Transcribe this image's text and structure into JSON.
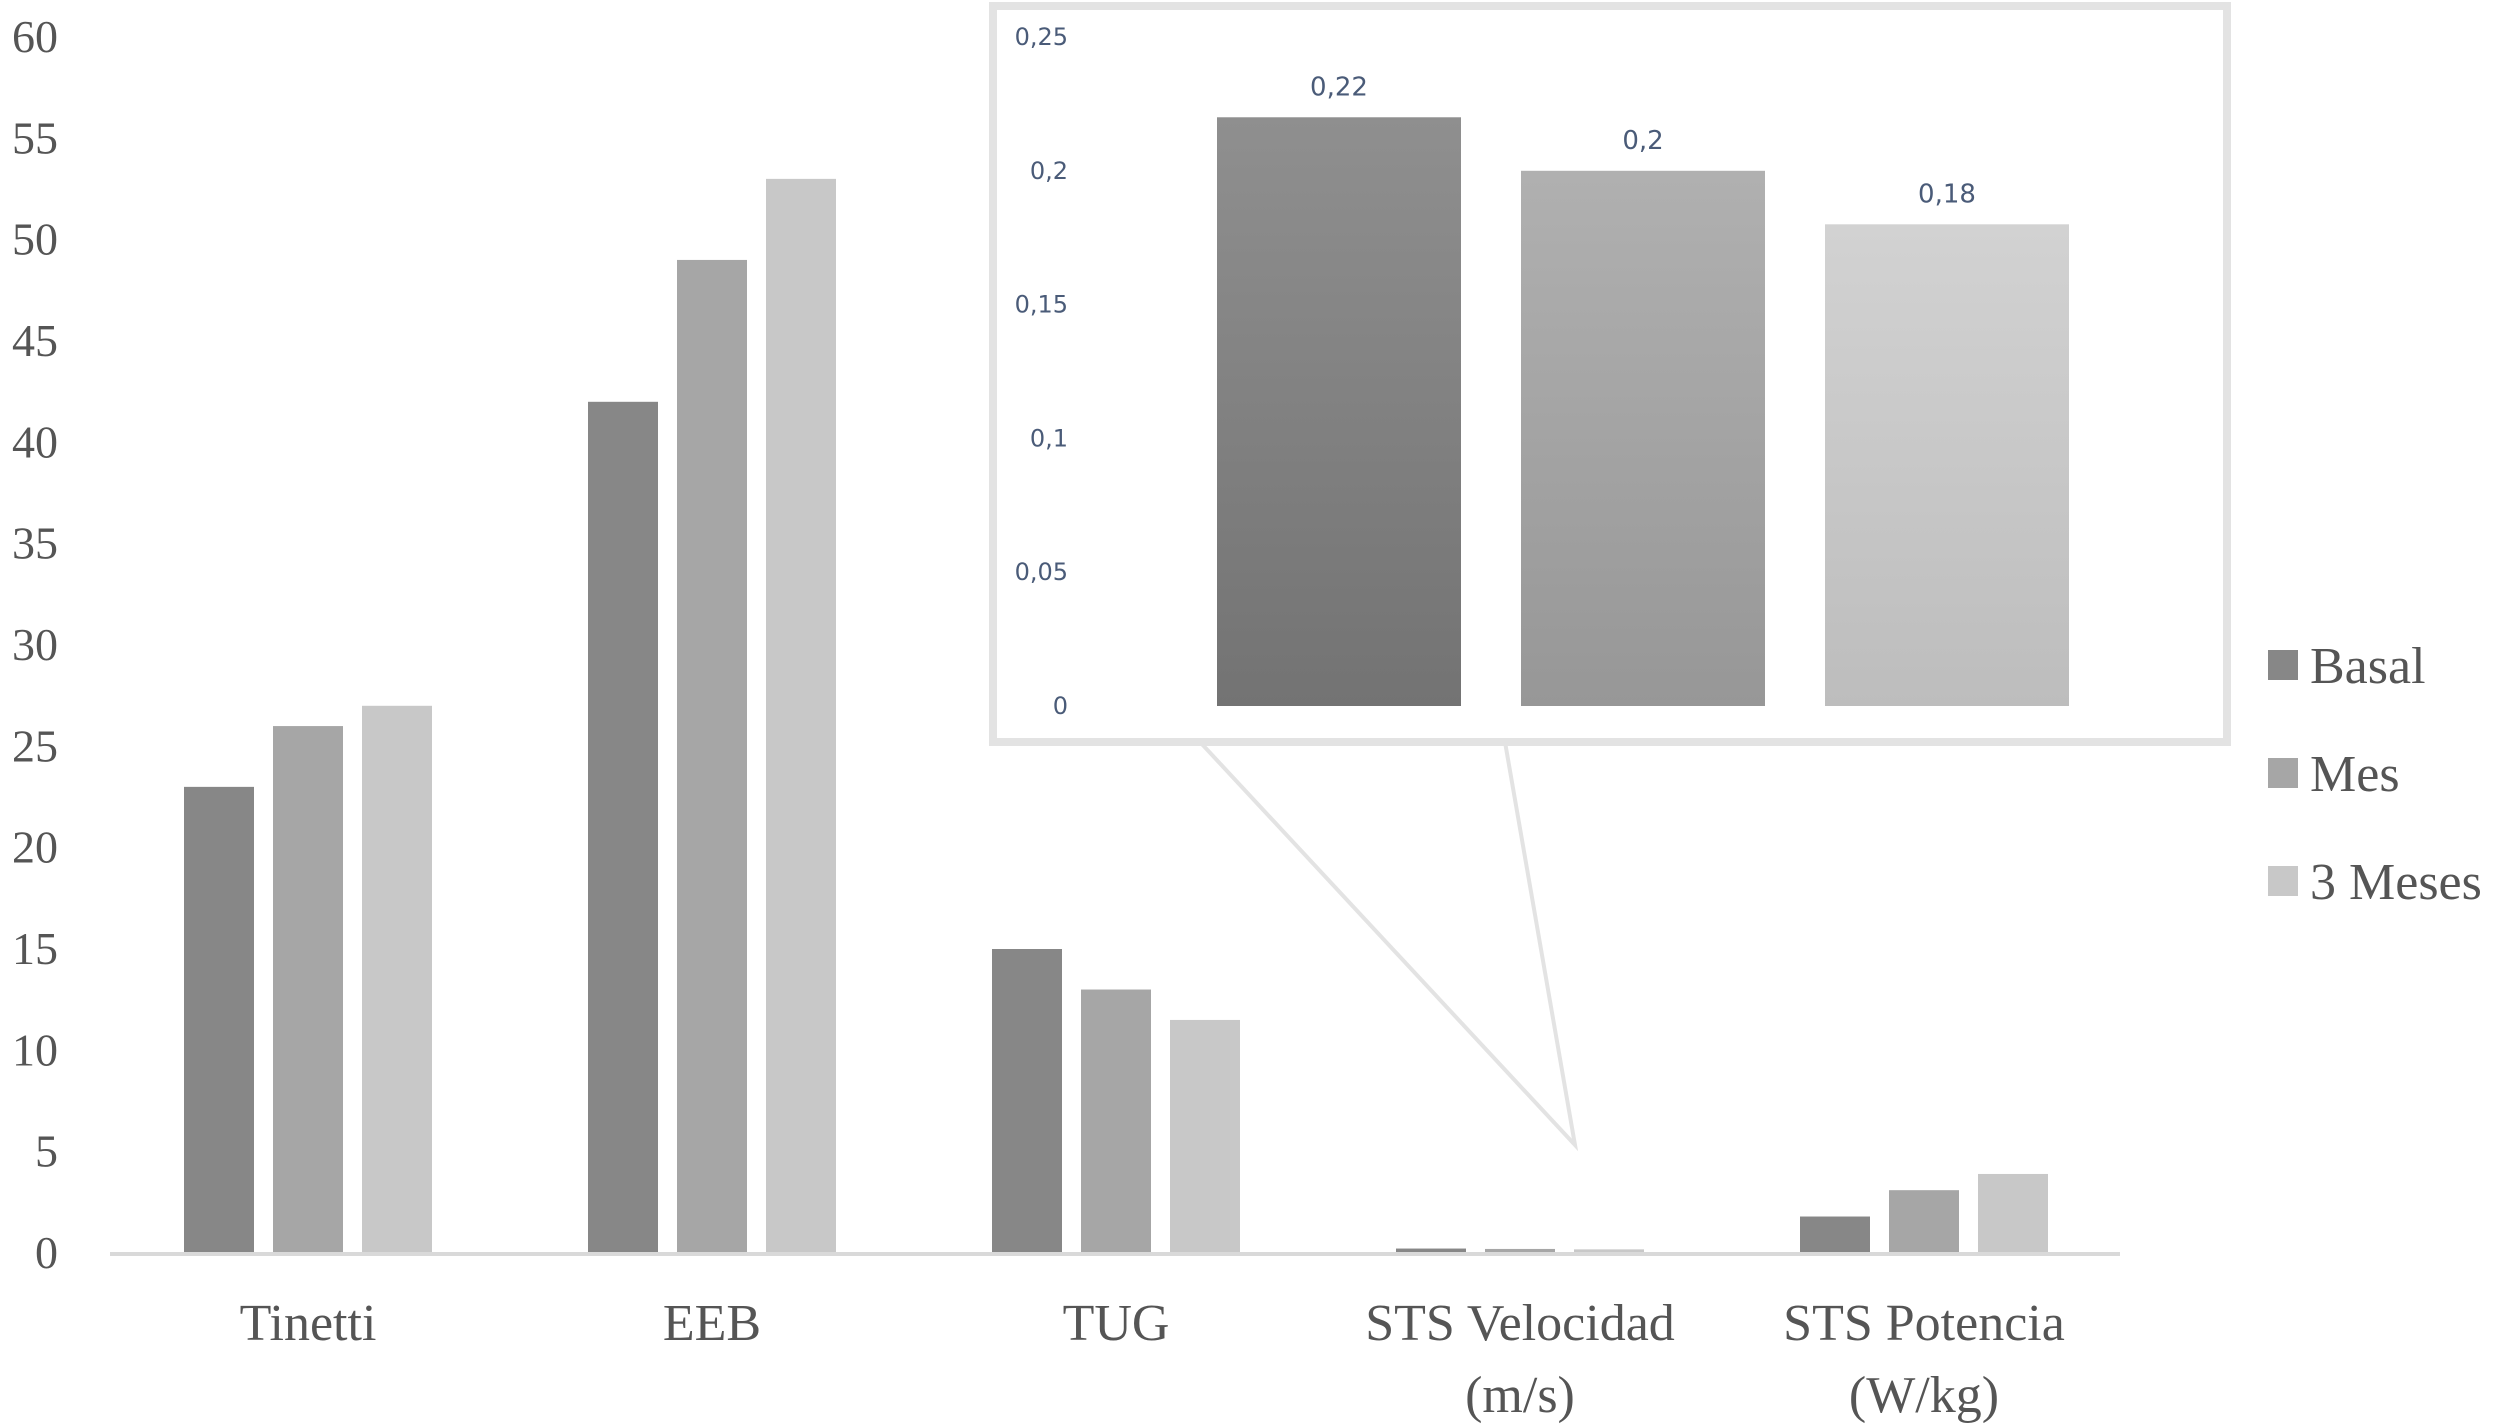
{
  "chart_data": [
    {
      "type": "bar",
      "categories": [
        [
          "Tinetti"
        ],
        [
          "EEB"
        ],
        [
          "TUG"
        ],
        [
          "STS Velocidad",
          "(m/s)"
        ],
        [
          "STS Potencia",
          "(W/kg)"
        ]
      ],
      "series": [
        {
          "name": "Basal",
          "values": [
            23,
            42,
            15,
            0.22,
            1.8
          ]
        },
        {
          "name": "Mes",
          "values": [
            26,
            49,
            13,
            0.2,
            3.1
          ]
        },
        {
          "name": "3 Meses",
          "values": [
            27,
            53,
            11.5,
            0.18,
            3.9
          ]
        }
      ],
      "ylim": [
        0,
        60
      ],
      "yticks": [
        "0",
        "5",
        "10",
        "15",
        "20",
        "25",
        "30",
        "35",
        "40",
        "45",
        "50",
        "55",
        "60"
      ],
      "legend_position": "right",
      "grid": false
    },
    {
      "type": "bar",
      "inset_of_category": "STS Velocidad (m/s)",
      "categories": [
        "Basal",
        "Mes",
        "3 Meses"
      ],
      "values": [
        0.22,
        0.2,
        0.18
      ],
      "data_labels": [
        "0,22",
        "0,2",
        "0,18"
      ],
      "ylim": [
        0,
        0.25
      ],
      "yticks": [
        "0",
        "0,05",
        "0,1",
        "0,15",
        "0,2",
        "0,25"
      ]
    }
  ],
  "colors": {
    "basal": "#878787",
    "mes": "#a6a6a6",
    "tres_meses": "#c8c8c8",
    "axis": "#d9d9d9",
    "inset_border": "#e3e3e3",
    "inset_text": "#4a5b78"
  }
}
